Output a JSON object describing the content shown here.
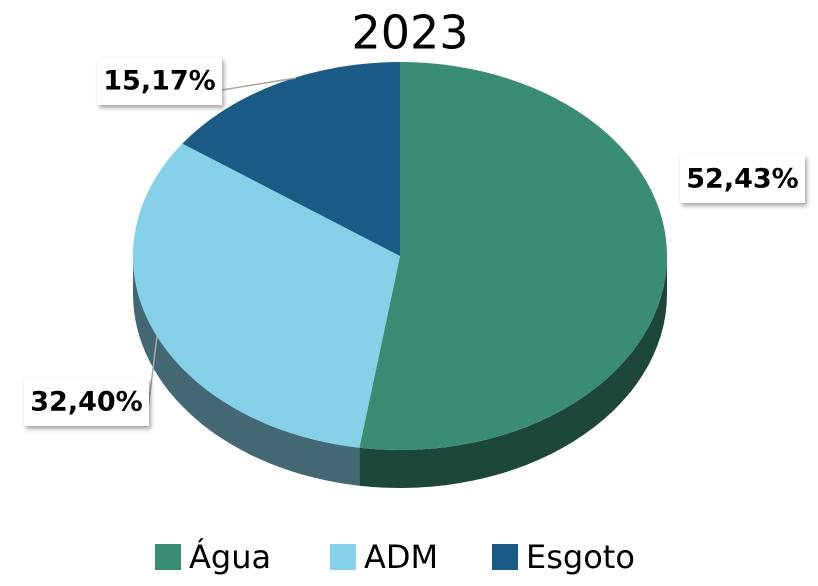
{
  "chart_data": {
    "type": "pie",
    "title": "2023",
    "categories": [
      "Água",
      "ADM",
      "Esgoto"
    ],
    "values": [
      52.43,
      32.4,
      15.17
    ],
    "value_labels": [
      "52,43%",
      "32,40%",
      "15,17%"
    ],
    "colors": [
      "#3a8c74",
      "#86d0e8",
      "#1a5a85"
    ],
    "legend": "bottom"
  }
}
